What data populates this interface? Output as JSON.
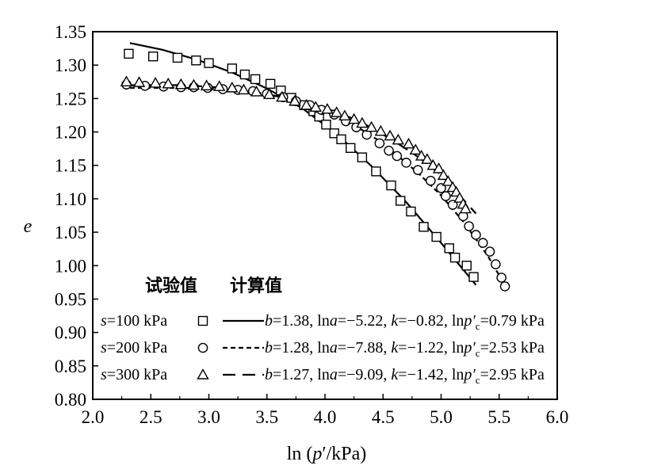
{
  "chart_data": {
    "type": "scatter",
    "xlabel": "ln (p′/kPa)",
    "xlabel_parts": {
      "prefix": "ln (",
      "var": "p",
      "suffix": "′/kPa)"
    },
    "ylabel": "e",
    "xlim": [
      2.0,
      6.0
    ],
    "ylim": [
      0.8,
      1.35
    ],
    "x_ticks": [
      "2.0",
      "2.5",
      "3.0",
      "3.5",
      "4.0",
      "4.5",
      "5.0",
      "5.5",
      "6.0"
    ],
    "y_ticks": [
      "0.80",
      "0.85",
      "0.90",
      "0.95",
      "1.00",
      "1.05",
      "1.10",
      "1.15",
      "1.20",
      "1.25",
      "1.30",
      "1.35"
    ],
    "grid": false,
    "legend": {
      "placement": "bottom-left",
      "header_measured": "试验值",
      "header_calculated": "计算值",
      "entries": [
        {
          "s_label": "s",
          "s_value": "=100 kPa",
          "marker": "square",
          "line": "solid",
          "params": [
            [
              "b",
              "=1.38, ln"
            ],
            [
              "a",
              "=−5.22, "
            ],
            [
              "k",
              "=−0.82, ln"
            ],
            [
              "p′c",
              "=0.79 kPa"
            ]
          ]
        },
        {
          "s_label": "s",
          "s_value": "=200 kPa",
          "marker": "circle",
          "line": "short-dash",
          "params": [
            [
              "b",
              "=1.28, ln"
            ],
            [
              "a",
              "=−7.88, "
            ],
            [
              "k",
              "=−1.22, ln"
            ],
            [
              "p′c",
              "=2.53 kPa"
            ]
          ]
        },
        {
          "s_label": "s",
          "s_value": "=300 kPa",
          "marker": "triangle",
          "line": "long-dash",
          "params": [
            [
              "b",
              "=1.27, ln"
            ],
            [
              "a",
              "=−9.09, "
            ],
            [
              "k",
              "=−1.42, ln"
            ],
            [
              "p′c",
              "=2.95 kPa"
            ]
          ]
        }
      ]
    },
    "series": [
      {
        "name": "s=100 kPa",
        "marker": "square",
        "measured": [
          [
            2.31,
            1.317
          ],
          [
            2.52,
            1.313
          ],
          [
            2.73,
            1.311
          ],
          [
            2.89,
            1.307
          ],
          [
            3.0,
            1.303
          ],
          [
            3.2,
            1.295
          ],
          [
            3.31,
            1.286
          ],
          [
            3.4,
            1.279
          ],
          [
            3.53,
            1.272
          ],
          [
            3.62,
            1.262
          ],
          [
            3.71,
            1.251
          ],
          [
            3.82,
            1.24
          ],
          [
            3.9,
            1.231
          ],
          [
            3.95,
            1.223
          ],
          [
            4.01,
            1.211
          ],
          [
            4.08,
            1.198
          ],
          [
            4.14,
            1.189
          ],
          [
            4.22,
            1.176
          ],
          [
            4.32,
            1.162
          ],
          [
            4.44,
            1.141
          ],
          [
            4.57,
            1.12
          ],
          [
            4.65,
            1.097
          ],
          [
            4.74,
            1.081
          ],
          [
            4.85,
            1.058
          ],
          [
            4.96,
            1.043
          ],
          [
            5.07,
            1.026
          ],
          [
            5.12,
            1.012
          ],
          [
            5.22,
            1.0
          ],
          [
            5.28,
            0.983
          ]
        ],
        "calculated": [
          [
            2.32,
            1.333
          ],
          [
            2.6,
            1.323
          ],
          [
            2.9,
            1.308
          ],
          [
            3.2,
            1.289
          ],
          [
            3.5,
            1.265
          ],
          [
            3.8,
            1.236
          ],
          [
            4.1,
            1.197
          ],
          [
            4.4,
            1.149
          ],
          [
            4.7,
            1.095
          ],
          [
            5.0,
            1.034
          ],
          [
            5.3,
            0.971
          ]
        ]
      },
      {
        "name": "s=200 kPa",
        "marker": "circle",
        "measured": [
          [
            2.29,
            1.271
          ],
          [
            2.45,
            1.269
          ],
          [
            2.61,
            1.268
          ],
          [
            2.76,
            1.267
          ],
          [
            2.87,
            1.267
          ],
          [
            2.99,
            1.266
          ],
          [
            3.12,
            1.264
          ],
          [
            3.25,
            1.263
          ],
          [
            3.38,
            1.261
          ],
          [
            3.5,
            1.257
          ],
          [
            3.64,
            1.252
          ],
          [
            3.75,
            1.246
          ],
          [
            3.87,
            1.24
          ],
          [
            3.97,
            1.233
          ],
          [
            4.08,
            1.226
          ],
          [
            4.18,
            1.216
          ],
          [
            4.27,
            1.207
          ],
          [
            4.36,
            1.196
          ],
          [
            4.47,
            1.183
          ],
          [
            4.55,
            1.172
          ],
          [
            4.62,
            1.164
          ],
          [
            4.7,
            1.154
          ],
          [
            4.8,
            1.143
          ],
          [
            4.91,
            1.127
          ],
          [
            5.0,
            1.116
          ],
          [
            5.04,
            1.104
          ],
          [
            5.1,
            1.091
          ],
          [
            5.19,
            1.074
          ],
          [
            5.24,
            1.059
          ],
          [
            5.3,
            1.046
          ],
          [
            5.36,
            1.034
          ],
          [
            5.42,
            1.021
          ],
          [
            5.47,
            1.002
          ],
          [
            5.52,
            0.982
          ],
          [
            5.55,
            0.969
          ]
        ],
        "calculated": [
          [
            2.32,
            1.266
          ],
          [
            2.8,
            1.266
          ],
          [
            3.2,
            1.263
          ],
          [
            3.6,
            1.253
          ],
          [
            3.9,
            1.238
          ],
          [
            4.2,
            1.216
          ],
          [
            4.5,
            1.183
          ],
          [
            4.8,
            1.139
          ],
          [
            5.0,
            1.105
          ],
          [
            5.2,
            1.064
          ],
          [
            5.4,
            1.015
          ],
          [
            5.55,
            0.971
          ]
        ]
      },
      {
        "name": "s=300 kPa",
        "marker": "triangle",
        "measured": [
          [
            2.29,
            1.275
          ],
          [
            2.4,
            1.274
          ],
          [
            2.54,
            1.273
          ],
          [
            2.65,
            1.272
          ],
          [
            2.76,
            1.271
          ],
          [
            2.87,
            1.27
          ],
          [
            2.98,
            1.269
          ],
          [
            3.09,
            1.268
          ],
          [
            3.2,
            1.266
          ],
          [
            3.3,
            1.263
          ],
          [
            3.41,
            1.26
          ],
          [
            3.52,
            1.256
          ],
          [
            3.63,
            1.252
          ],
          [
            3.74,
            1.246
          ],
          [
            3.84,
            1.24
          ],
          [
            3.92,
            1.237
          ],
          [
            4.02,
            1.234
          ],
          [
            4.1,
            1.229
          ],
          [
            4.17,
            1.224
          ],
          [
            4.25,
            1.219
          ],
          [
            4.32,
            1.213
          ],
          [
            4.4,
            1.207
          ],
          [
            4.48,
            1.201
          ],
          [
            4.56,
            1.194
          ],
          [
            4.63,
            1.188
          ],
          [
            4.72,
            1.182
          ],
          [
            4.78,
            1.173
          ],
          [
            4.83,
            1.164
          ],
          [
            4.88,
            1.159
          ],
          [
            4.93,
            1.15
          ],
          [
            4.98,
            1.145
          ],
          [
            5.02,
            1.135
          ],
          [
            5.06,
            1.126
          ],
          [
            5.1,
            1.117
          ],
          [
            5.13,
            1.11
          ],
          [
            5.16,
            1.101
          ],
          [
            5.19,
            1.092
          ],
          [
            5.21,
            1.085
          ]
        ],
        "calculated": [
          [
            2.32,
            1.27
          ],
          [
            2.8,
            1.27
          ],
          [
            3.2,
            1.265
          ],
          [
            3.5,
            1.257
          ],
          [
            3.8,
            1.245
          ],
          [
            4.0,
            1.236
          ],
          [
            4.3,
            1.216
          ],
          [
            4.6,
            1.186
          ],
          [
            4.8,
            1.163
          ],
          [
            5.0,
            1.136
          ],
          [
            5.2,
            1.097
          ],
          [
            5.3,
            1.078
          ]
        ]
      }
    ]
  }
}
